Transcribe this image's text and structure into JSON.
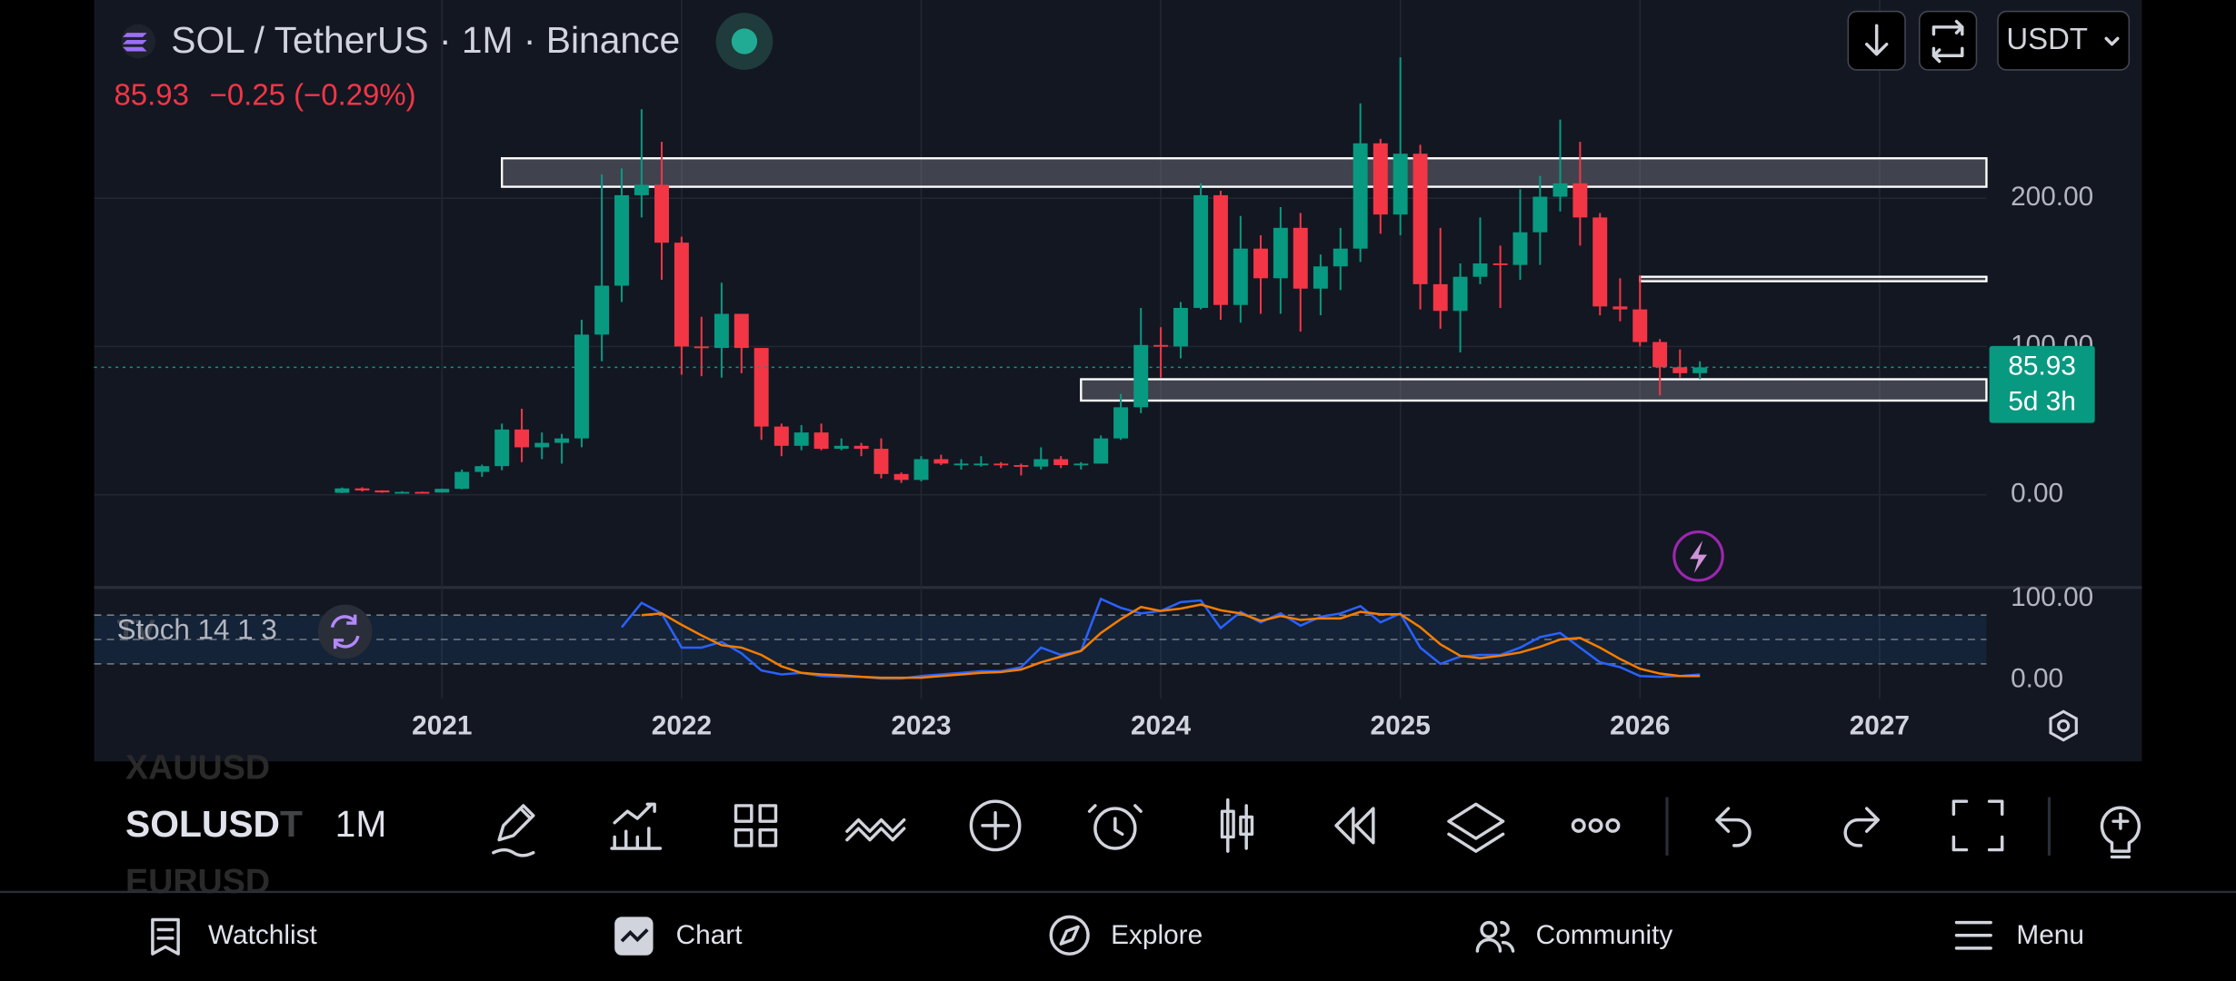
{
  "header": {
    "symbol": "SOL / TetherUS · 1M · Binance",
    "price": "85.93",
    "change": "−0.25 (−0.29%)",
    "currency": "USDT"
  },
  "chart_data": {
    "type": "candlestick",
    "x": [
      2020.583,
      2020.667,
      2020.75,
      2020.833,
      2020.917,
      2021,
      2021.083,
      2021.167,
      2021.25,
      2021.333,
      2021.417,
      2021.5,
      2021.583,
      2021.667,
      2021.75,
      2021.833,
      2021.917,
      2022,
      2022.083,
      2022.167,
      2022.25,
      2022.333,
      2022.417,
      2022.5,
      2022.583,
      2022.667,
      2022.75,
      2022.833,
      2022.917,
      2023,
      2023.083,
      2023.167,
      2023.25,
      2023.333,
      2023.417,
      2023.5,
      2023.583,
      2023.667,
      2023.75,
      2023.833,
      2023.917,
      2024,
      2024.083,
      2024.167,
      2024.25,
      2024.333,
      2024.417,
      2024.5,
      2024.583,
      2024.667,
      2024.75,
      2024.833,
      2024.917,
      2025,
      2025.083,
      2025.167,
      2025.25,
      2025.333,
      2025.417,
      2025.5,
      2025.583,
      2025.667,
      2025.75,
      2025.833,
      2025.917,
      2026,
      2026.083,
      2026.167,
      2026.25
    ],
    "open": [
      1.3,
      4.3,
      2.9,
      1.6,
      1.9,
      1.5,
      4.0,
      15.4,
      19.3,
      44.0,
      32.0,
      35.0,
      38.0,
      108.0,
      141.0,
      202.0,
      209.0,
      170.0,
      100.0,
      99.0,
      122.0,
      99.0,
      46.0,
      33.0,
      42.0,
      31.0,
      33.0,
      31.0,
      14.0,
      10.0,
      24.0,
      21.0,
      21.0,
      21.0,
      20.0,
      19.0,
      24.0,
      20.0,
      21.0,
      38.0,
      59.0,
      101.0,
      100.0,
      126.0,
      202.0,
      128.0,
      166.0,
      146.0,
      180.0,
      139.0,
      154.0,
      166.0,
      237.0,
      189.0,
      230.0,
      142.0,
      124.0,
      147.0,
      156.0,
      155.0,
      177.0,
      201.0,
      210.0,
      187.0,
      127.0,
      125.0,
      103.0,
      86.0,
      82.0
    ],
    "high": [
      4.9,
      5.0,
      3.0,
      2.4,
      2.2,
      4.2,
      17.0,
      20.3,
      48.0,
      58.0,
      42.0,
      41.0,
      118.0,
      216.0,
      220.0,
      260.0,
      238.0,
      174.0,
      120.0,
      143.0,
      122.0,
      99.0,
      48.0,
      47.0,
      48.0,
      38.0,
      35.0,
      38.0,
      15.0,
      26.0,
      27.0,
      24.0,
      26.0,
      22.0,
      21.0,
      32.0,
      26.0,
      22.0,
      40.0,
      68.0,
      126.0,
      113.0,
      130.0,
      210.0,
      205.0,
      188.0,
      175.0,
      194.0,
      190.0,
      162.0,
      180.0,
      264.0,
      240.0,
      295.0,
      236.0,
      180.0,
      156.0,
      187.0,
      168.0,
      206.0,
      215.0,
      253.0,
      238.0,
      190.0,
      146.0,
      148.0,
      105.0,
      98.0,
      90.0
    ],
    "low": [
      1.1,
      2.2,
      1.3,
      1.4,
      1.2,
      1.4,
      3.7,
      12.1,
      16.5,
      22.0,
      24.0,
      21.0,
      32.0,
      90.0,
      130.0,
      187.0,
      145.0,
      81.0,
      80.0,
      79.0,
      82.0,
      37.0,
      26.0,
      30.0,
      30.0,
      30.0,
      26.0,
      11.0,
      8.0,
      9.0,
      20.0,
      17.0,
      19.0,
      18.0,
      13.0,
      17.0,
      18.0,
      17.0,
      21.0,
      37.0,
      55.0,
      79.0,
      92.0,
      125.0,
      118.0,
      116.0,
      122.0,
      122.0,
      110.0,
      121.0,
      138.0,
      157.0,
      176.0,
      175.0,
      125.0,
      112.0,
      96.0,
      142.0,
      126.0,
      145.0,
      155.0,
      191.0,
      168.0,
      121.0,
      117.0,
      100.0,
      67.0,
      79.0,
      78.0
    ],
    "close": [
      4.3,
      2.9,
      1.6,
      1.9,
      1.5,
      4.0,
      15.4,
      19.3,
      44.0,
      32.0,
      35.0,
      38.0,
      108.0,
      141.0,
      202.0,
      209.0,
      170.0,
      100.0,
      99.0,
      122.0,
      99.0,
      46.0,
      33.0,
      42.0,
      31.0,
      33.0,
      31.0,
      14.0,
      10.0,
      24.0,
      21.0,
      21.0,
      21.0,
      20.0,
      19.0,
      24.0,
      20.0,
      21.0,
      38.0,
      59.0,
      101.0,
      100.0,
      126.0,
      202.0,
      128.0,
      166.0,
      146.0,
      180.0,
      139.0,
      154.0,
      166.0,
      237.0,
      189.0,
      230.0,
      142.0,
      124.0,
      147.0,
      156.0,
      155.0,
      177.0,
      201.0,
      210.0,
      187.0,
      127.0,
      125.0,
      103.0,
      86.0,
      82.0,
      85.93
    ],
    "up_color": "#089981",
    "down_color": "#f23645",
    "xlim": [
      2019.548,
      2027.446
    ],
    "xticks": [
      2021,
      2022,
      2023,
      2024,
      2025,
      2026,
      2027
    ],
    "ylim": [
      -60.6,
      333.65
    ],
    "yticks": [
      {
        "value": 0,
        "label": "0.00"
      },
      {
        "value": 100,
        "label": "100.00"
      },
      {
        "value": 200,
        "label": "200.00"
      }
    ],
    "grid": true,
    "last_price": 85.93,
    "countdown": "5d 3h",
    "zones": [
      {
        "x0": 2021.25,
        "low": 207.7,
        "high": 226.9
      },
      {
        "x0": 2026.0,
        "low": 144.0,
        "high": 147.0
      },
      {
        "x0": 2023.667,
        "low": 63.5,
        "high": 77.9
      }
    ],
    "indicator": {
      "name": "Stoch 14 1 3",
      "ylim": [
        -22.8,
        114.0
      ],
      "yticks": [
        {
          "value": 100,
          "label": "100.00"
        },
        {
          "value": 0,
          "label": "0.00"
        }
      ],
      "bands": [
        80,
        50,
        20
      ],
      "series": [
        {
          "color": "#2962ff",
          "values": [
            null,
            null,
            null,
            null,
            null,
            null,
            null,
            null,
            null,
            null,
            null,
            null,
            null,
            null,
            65,
            95,
            82,
            40,
            40,
            47,
            33,
            12,
            7,
            9,
            5,
            4,
            4,
            2,
            2,
            5,
            7,
            9,
            11,
            11,
            16,
            40,
            31,
            36,
            100,
            89,
            82,
            85,
            96,
            98,
            64,
            84,
            71,
            82,
            67,
            78,
            82,
            91,
            71,
            82,
            40,
            20,
            29,
            31,
            31,
            40,
            53,
            58,
            40,
            22,
            16,
            5,
            4,
            5,
            7
          ]
        },
        {
          "color": "#f57c00",
          "values": [
            null,
            null,
            null,
            null,
            null,
            null,
            null,
            null,
            null,
            null,
            null,
            null,
            null,
            null,
            null,
            80,
            82,
            68,
            55,
            43,
            40,
            31,
            17,
            9,
            7,
            6,
            4,
            3,
            3,
            3,
            5,
            7,
            9,
            10,
            13,
            22,
            29,
            36,
            58,
            75,
            90,
            85,
            88,
            93,
            86,
            82,
            73,
            79,
            74,
            76,
            76,
            84,
            81,
            81,
            65,
            44,
            30,
            27,
            30,
            34,
            41,
            50,
            52,
            40,
            26,
            14,
            8,
            5,
            5
          ]
        }
      ]
    }
  },
  "toolbar": {
    "symbols": [
      "XAUUSD",
      "SOLUSDT",
      "EURUSD"
    ],
    "interval": "1M"
  },
  "nav": [
    "Watchlist",
    "Chart",
    "Explore",
    "Community",
    "Menu"
  ]
}
